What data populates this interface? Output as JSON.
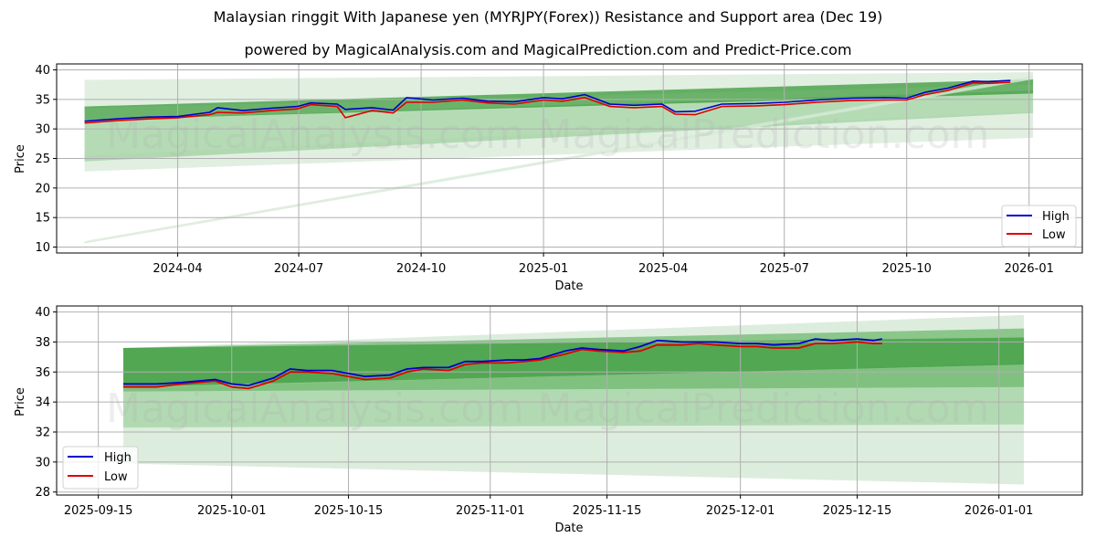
{
  "header": {
    "title": "Malaysian ringgit With Japanese yen (MYRJPY(Forex)) Resistance and Support area (Dec 19)",
    "subtitle": "powered by MagicalAnalysis.com and MagicalPrediction.com and Predict-Price.com"
  },
  "watermarks": [
    "MagicalAnalysis.com",
    "MagicalPrediction.com"
  ],
  "colors": {
    "high": "#0000cc",
    "low": "#e00000",
    "band_dark": "#3a9a3a",
    "band_mid": "#6fb86f",
    "band_light": "#a8d5a8",
    "band_faint": "#d7ead7",
    "grid": "#b0b0b0"
  },
  "chart_data": [
    {
      "type": "line",
      "title": "",
      "xlabel": "Date",
      "ylabel": "Price",
      "ylim": [
        9,
        41
      ],
      "yticks": [
        10,
        15,
        20,
        25,
        30,
        35,
        40
      ],
      "xticks": [
        "2024-04",
        "2024-07",
        "2024-10",
        "2025-01",
        "2025-04",
        "2025-07",
        "2025-10",
        "2026-01"
      ],
      "grid": true,
      "legend": {
        "position": "lower right",
        "entries": [
          "High",
          "Low"
        ]
      },
      "x": [
        "2024-01-22",
        "2024-02-15",
        "2024-03-10",
        "2024-04-01",
        "2024-04-25",
        "2024-05-01",
        "2024-05-20",
        "2024-06-10",
        "2024-06-30",
        "2024-07-10",
        "2024-07-30",
        "2024-08-05",
        "2024-08-25",
        "2024-09-10",
        "2024-09-20",
        "2024-10-10",
        "2024-11-01",
        "2024-11-20",
        "2024-12-10",
        "2025-01-01",
        "2025-01-15",
        "2025-02-01",
        "2025-02-20",
        "2025-03-10",
        "2025-03-31",
        "2025-04-10",
        "2025-04-25",
        "2025-05-15",
        "2025-06-10",
        "2025-07-01",
        "2025-07-25",
        "2025-08-20",
        "2025-09-15",
        "2025-10-01",
        "2025-10-15",
        "2025-11-01",
        "2025-11-20",
        "2025-12-01",
        "2025-12-18"
      ],
      "series": [
        {
          "name": "High",
          "values": [
            31.3,
            31.7,
            32.0,
            32.1,
            32.8,
            33.6,
            33.1,
            33.5,
            33.8,
            34.4,
            34.2,
            33.3,
            33.6,
            33.2,
            35.3,
            34.9,
            35.2,
            34.7,
            34.6,
            35.3,
            35.1,
            35.8,
            34.2,
            34.0,
            34.2,
            32.9,
            33.0,
            34.2,
            34.3,
            34.5,
            34.9,
            35.2,
            35.3,
            35.2,
            36.2,
            36.9,
            38.1,
            38.0,
            38.2
          ]
        },
        {
          "name": "Low",
          "values": [
            31.0,
            31.4,
            31.7,
            31.9,
            32.4,
            32.8,
            32.7,
            33.1,
            33.4,
            34.1,
            33.8,
            31.9,
            33.1,
            32.7,
            34.5,
            34.5,
            34.9,
            34.4,
            34.2,
            34.9,
            34.7,
            35.3,
            33.8,
            33.6,
            33.8,
            32.5,
            32.4,
            33.8,
            33.9,
            34.1,
            34.5,
            34.8,
            34.9,
            34.9,
            35.8,
            36.5,
            37.8,
            37.7,
            37.9
          ]
        }
      ],
      "bands": [
        {
          "name": "outer-faint-upper",
          "x_start": "2024-01-22",
          "x_end": "2026-01-04",
          "upper": [
            38.3,
            39.6
          ],
          "lower": [
            33.5,
            37.5
          ]
        },
        {
          "name": "outer-faint-lower",
          "x_start": "2024-01-22",
          "x_end": "2026-01-04",
          "upper": [
            25.5,
            33.0
          ],
          "lower": [
            22.8,
            28.5
          ]
        },
        {
          "name": "support-zone",
          "x_start": "2024-01-22",
          "x_end": "2026-01-04",
          "upper": [
            31.5,
            36.5
          ],
          "lower": [
            24.5,
            32.7
          ]
        },
        {
          "name": "resistance-zone",
          "x_start": "2024-01-22",
          "x_end": "2026-01-04",
          "upper": [
            33.8,
            38.4
          ],
          "lower": [
            31.5,
            36.0
          ]
        },
        {
          "name": "trend-line-faint",
          "x_start": "2024-01-22",
          "x_end": "2026-01-04",
          "upper": [
            11.0,
            39.0
          ],
          "lower": [
            10.6,
            38.4
          ]
        }
      ]
    },
    {
      "type": "line",
      "title": "",
      "xlabel": "Date",
      "ylabel": "Price",
      "ylim": [
        27.8,
        40.4
      ],
      "yticks": [
        28,
        30,
        32,
        34,
        36,
        38,
        40
      ],
      "xticks": [
        "2025-09-15",
        "2025-10-01",
        "2025-10-15",
        "2025-11-01",
        "2025-11-15",
        "2025-12-01",
        "2025-12-15",
        "2026-01-01"
      ],
      "grid": true,
      "legend": {
        "position": "lower left",
        "entries": [
          "High",
          "Low"
        ]
      },
      "x": [
        "2025-09-18",
        "2025-09-22",
        "2025-09-25",
        "2025-09-29",
        "2025-10-01",
        "2025-10-03",
        "2025-10-06",
        "2025-10-08",
        "2025-10-10",
        "2025-10-13",
        "2025-10-15",
        "2025-10-17",
        "2025-10-20",
        "2025-10-22",
        "2025-10-24",
        "2025-10-27",
        "2025-10-29",
        "2025-10-31",
        "2025-11-03",
        "2025-11-05",
        "2025-11-07",
        "2025-11-10",
        "2025-11-12",
        "2025-11-14",
        "2025-11-17",
        "2025-11-19",
        "2025-11-21",
        "2025-11-24",
        "2025-11-26",
        "2025-11-28",
        "2025-12-01",
        "2025-12-03",
        "2025-12-05",
        "2025-12-08",
        "2025-12-10",
        "2025-12-12",
        "2025-12-15",
        "2025-12-17",
        "2025-12-18"
      ],
      "series": [
        {
          "name": "High",
          "values": [
            35.2,
            35.2,
            35.3,
            35.5,
            35.2,
            35.1,
            35.6,
            36.2,
            36.1,
            36.1,
            35.9,
            35.7,
            35.8,
            36.2,
            36.3,
            36.3,
            36.7,
            36.7,
            36.8,
            36.8,
            36.9,
            37.4,
            37.6,
            37.5,
            37.4,
            37.7,
            38.1,
            38.0,
            38.0,
            38.0,
            37.9,
            37.9,
            37.8,
            37.9,
            38.2,
            38.1,
            38.2,
            38.1,
            38.2
          ]
        },
        {
          "name": "Low",
          "values": [
            35.0,
            35.0,
            35.2,
            35.4,
            35.0,
            34.9,
            35.4,
            36.0,
            36.0,
            35.9,
            35.7,
            35.5,
            35.6,
            36.0,
            36.2,
            36.1,
            36.5,
            36.6,
            36.6,
            36.7,
            36.8,
            37.2,
            37.5,
            37.4,
            37.3,
            37.4,
            37.8,
            37.8,
            37.9,
            37.8,
            37.7,
            37.7,
            37.6,
            37.6,
            37.9,
            37.9,
            38.0,
            37.9,
            37.9
          ]
        }
      ],
      "bands": [
        {
          "name": "outer-faint",
          "x_start": "2025-09-18",
          "x_end": "2026-01-04",
          "upper": [
            37.6,
            39.8
          ],
          "lower": [
            29.9,
            28.5
          ]
        },
        {
          "name": "support-light",
          "x_start": "2025-09-18",
          "x_end": "2026-01-04",
          "upper": [
            34.9,
            36.6
          ],
          "lower": [
            32.3,
            32.5
          ]
        },
        {
          "name": "mid-zone",
          "x_start": "2025-09-18",
          "x_end": "2026-01-04",
          "upper": [
            37.6,
            38.9
          ],
          "lower": [
            34.7,
            35.0
          ]
        },
        {
          "name": "resistance-zone",
          "x_start": "2025-09-18",
          "x_end": "2026-01-04",
          "upper": [
            37.6,
            38.3
          ],
          "lower": [
            35.0,
            36.5
          ]
        }
      ]
    }
  ]
}
